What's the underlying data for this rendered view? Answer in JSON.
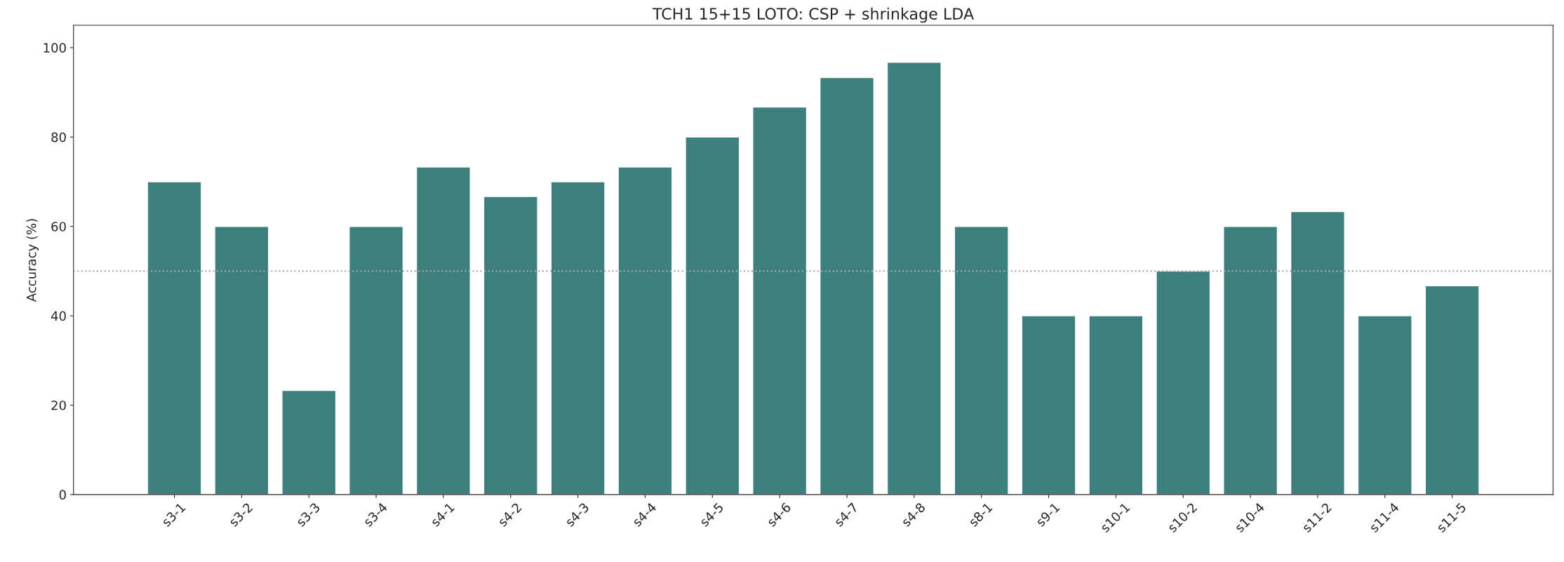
{
  "chart_data": {
    "type": "bar",
    "title": "TCH1 15+15 LOTO: CSP + shrinkage LDA",
    "ylabel": "Accuracy (%)",
    "categories": [
      "s3-1",
      "s3-2",
      "s3-3",
      "s3-4",
      "s4-1",
      "s4-2",
      "s4-3",
      "s4-4",
      "s4-5",
      "s4-6",
      "s4-7",
      "s4-8",
      "s8-1",
      "s9-1",
      "s10-1",
      "s10-2",
      "s10-4",
      "s11-2",
      "s11-4",
      "s11-5"
    ],
    "values": [
      70,
      60,
      23.3,
      60,
      73.3,
      66.7,
      70,
      73.3,
      80,
      86.7,
      93.3,
      96.7,
      60,
      40,
      40,
      50,
      60,
      63.3,
      40,
      46.7
    ],
    "color": "#3d7f7c",
    "ylim": [
      0,
      105
    ],
    "yticks": [
      0,
      20,
      40,
      60,
      80,
      100
    ],
    "ref_lines": [
      {
        "axis": "y",
        "value": 50,
        "color": "#aaaaaa",
        "line_style": "dotted"
      }
    ]
  }
}
